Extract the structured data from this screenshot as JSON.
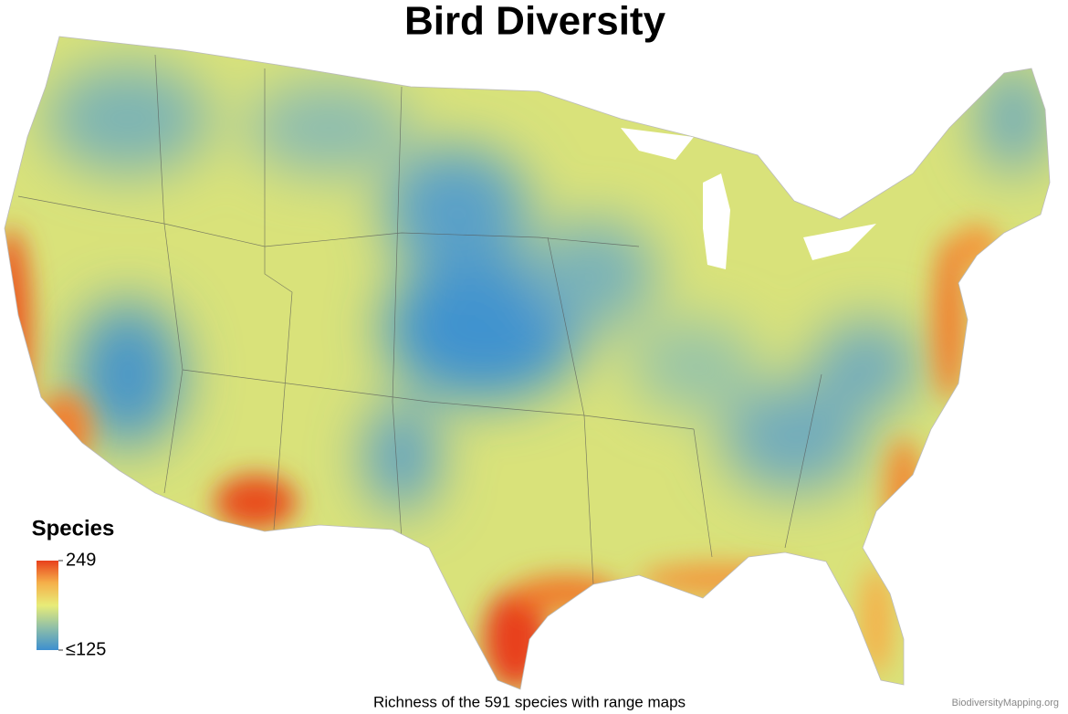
{
  "title": "Bird Diversity",
  "legend": {
    "title": "Species",
    "ticks": [
      {
        "value": 125,
        "label": "≤125"
      },
      249
    ],
    "colors": [
      "#3d8fcf",
      "#8fbfa8",
      "#e8ec78",
      "#f5b04a",
      "#e8401c"
    ]
  },
  "caption": "Richness of the 591 species with range maps",
  "credit": "BiodiversityMapping.org"
}
